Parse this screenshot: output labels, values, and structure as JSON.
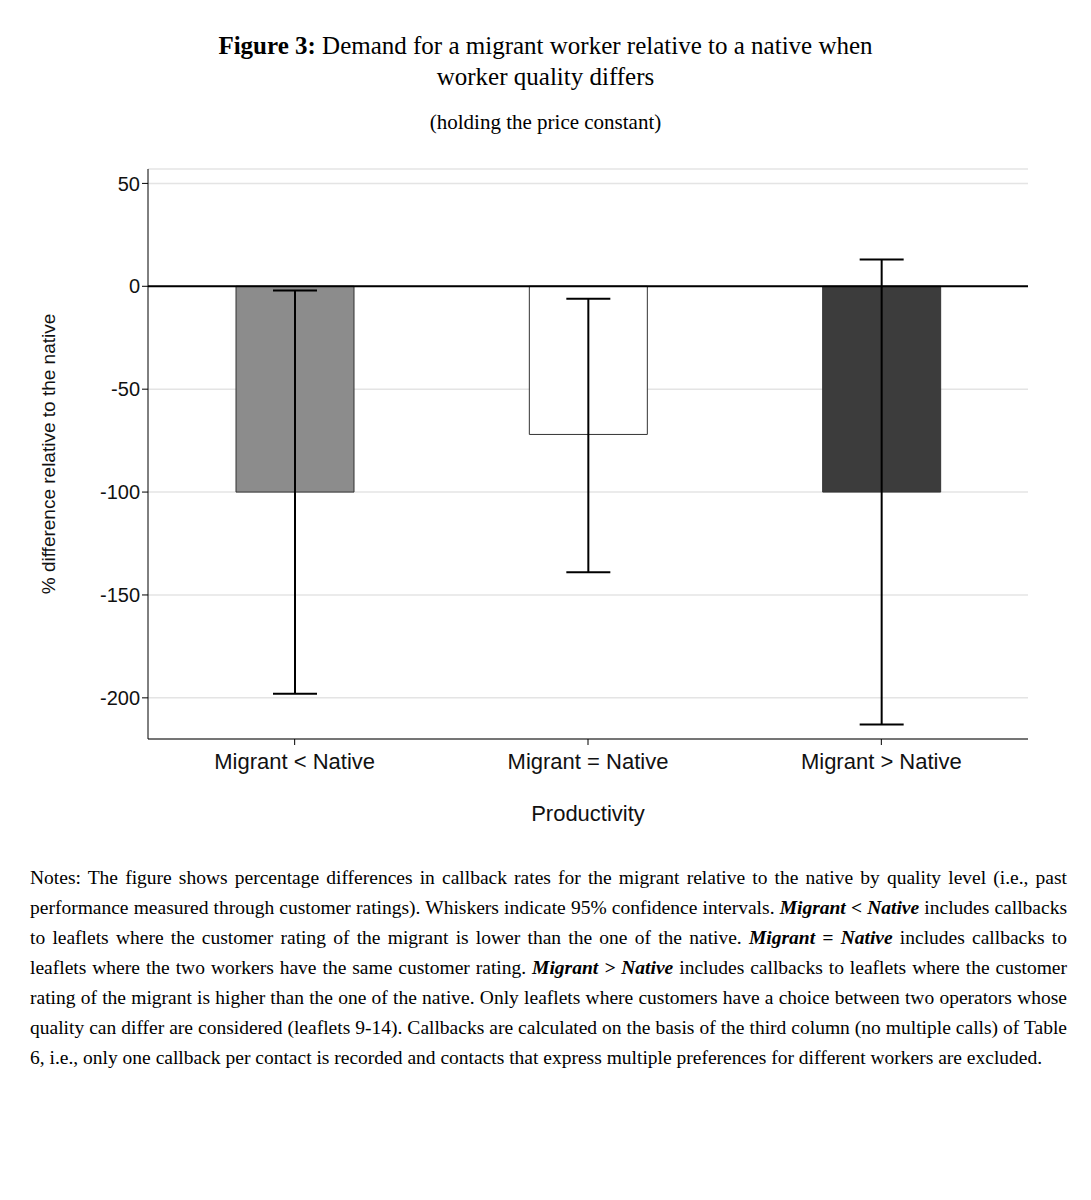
{
  "chart_data": {
    "type": "bar",
    "title": "Figure 3: Demand for a migrant worker relative to a native when worker quality differs",
    "subtitle": "(holding the price constant)",
    "x_label": "Productivity",
    "y_label": "% difference relative to the native",
    "categories": [
      "Migrant < Native",
      "Migrant = Native",
      "Migrant > Native"
    ],
    "values": [
      -100,
      -72,
      -100
    ],
    "colors": [
      "#8c8c8c",
      "#ffffff",
      "#3c3c3c"
    ],
    "ci_low": [
      -198,
      -139,
      -213
    ],
    "ci_high": [
      -2,
      -6,
      13
    ],
    "ylim": [
      -220,
      57
    ],
    "yticks": [
      -200,
      -150,
      -100,
      -50,
      0,
      50
    ],
    "grid": true,
    "baseline": 0,
    "notes": "Notes: The figure shows percentage differences in callback rates for the migrant relative to the native by quality level (i.e., past performance measured through customer ratings). Whiskers indicate 95% confidence intervals. Migrant < Native includes callbacks to leaflets where the customer rating of the migrant is lower than the one of the native. Migrant = Native includes callbacks to leaflets where the two workers have the same customer rating. Migrant > Native includes callbacks to leaflets where the customer rating of the migrant is higher than the one of the native. Only leaflets where customers have a choice between two operators whose quality can differ are considered (leaflets 9-14). Callbacks are calculated on the basis of the third column (no multiple calls) of Table 6, i.e., only one callback per contact is recorded and contacts that express multiple preferences for different workers are excluded."
  }
}
